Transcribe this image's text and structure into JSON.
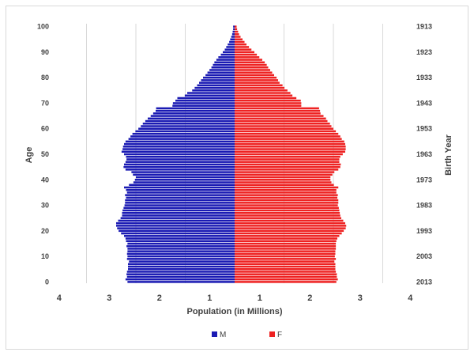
{
  "chart_data": {
    "type": "bar",
    "subtype": "population-pyramid",
    "orientation": "horizontal",
    "title": "",
    "xlabel": "Population  (in Millions)",
    "ylabel_left": "Age",
    "ylabel_right": "Birth Year",
    "x_tick_labels": [
      "4",
      "3",
      "2",
      "1",
      "1",
      "2",
      "3",
      "4"
    ],
    "y_ticks_left": [
      "0",
      "10",
      "20",
      "30",
      "40",
      "50",
      "60",
      "70",
      "80",
      "90",
      "100"
    ],
    "y_ticks_right": [
      "2013",
      "2003",
      "1993",
      "1983",
      "1973",
      "1963",
      "1953",
      "1943",
      "1933",
      "1923",
      "1913"
    ],
    "xlim_millions": [
      0,
      3.5
    ],
    "grid": true,
    "legend_position": "bottom",
    "series": [
      {
        "name": "M",
        "color": "#1a1ab3",
        "values": [
          2.17,
          2.21,
          2.18,
          2.19,
          2.18,
          2.16,
          2.16,
          2.16,
          2.14,
          2.18,
          2.17,
          2.18,
          2.17,
          2.17,
          2.19,
          2.17,
          2.2,
          2.21,
          2.24,
          2.3,
          2.35,
          2.38,
          2.4,
          2.4,
          2.36,
          2.31,
          2.28,
          2.28,
          2.27,
          2.25,
          2.23,
          2.22,
          2.22,
          2.2,
          2.22,
          2.18,
          2.2,
          2.24,
          2.14,
          2.05,
          2.02,
          2.0,
          2.06,
          2.09,
          2.21,
          2.25,
          2.24,
          2.21,
          2.19,
          2.2,
          2.24,
          2.29,
          2.27,
          2.26,
          2.24,
          2.21,
          2.15,
          2.11,
          2.07,
          2.01,
          1.95,
          1.9,
          1.86,
          1.81,
          1.76,
          1.7,
          1.65,
          1.6,
          1.59,
          1.26,
          1.25,
          1.2,
          1.16,
          1.01,
          0.96,
          0.86,
          0.81,
          0.76,
          0.72,
          0.68,
          0.64,
          0.59,
          0.55,
          0.51,
          0.47,
          0.44,
          0.41,
          0.37,
          0.33,
          0.28,
          0.24,
          0.2,
          0.17,
          0.14,
          0.11,
          0.09,
          0.07,
          0.05,
          0.04,
          0.03,
          0.03
        ]
      },
      {
        "name": "F",
        "color": "#ee2222",
        "values": [
          2.06,
          2.09,
          2.07,
          2.07,
          2.05,
          2.04,
          2.04,
          2.04,
          2.02,
          2.05,
          2.03,
          2.04,
          2.04,
          2.05,
          2.05,
          2.05,
          2.06,
          2.08,
          2.12,
          2.17,
          2.21,
          2.25,
          2.26,
          2.24,
          2.2,
          2.16,
          2.14,
          2.13,
          2.12,
          2.11,
          2.09,
          2.1,
          2.1,
          2.08,
          2.09,
          2.06,
          2.06,
          2.1,
          2.01,
          1.96,
          1.94,
          1.94,
          1.98,
          2.02,
          2.1,
          2.14,
          2.15,
          2.12,
          2.12,
          2.14,
          2.19,
          2.24,
          2.25,
          2.25,
          2.24,
          2.22,
          2.17,
          2.14,
          2.1,
          2.05,
          2.0,
          1.96,
          1.93,
          1.88,
          1.85,
          1.8,
          1.74,
          1.73,
          1.71,
          1.35,
          1.35,
          1.34,
          1.25,
          1.17,
          1.13,
          1.07,
          1.01,
          0.97,
          0.91,
          0.88,
          0.85,
          0.8,
          0.76,
          0.72,
          0.68,
          0.65,
          0.61,
          0.56,
          0.5,
          0.45,
          0.4,
          0.34,
          0.29,
          0.24,
          0.2,
          0.16,
          0.12,
          0.09,
          0.07,
          0.05,
          0.04
        ]
      }
    ]
  }
}
